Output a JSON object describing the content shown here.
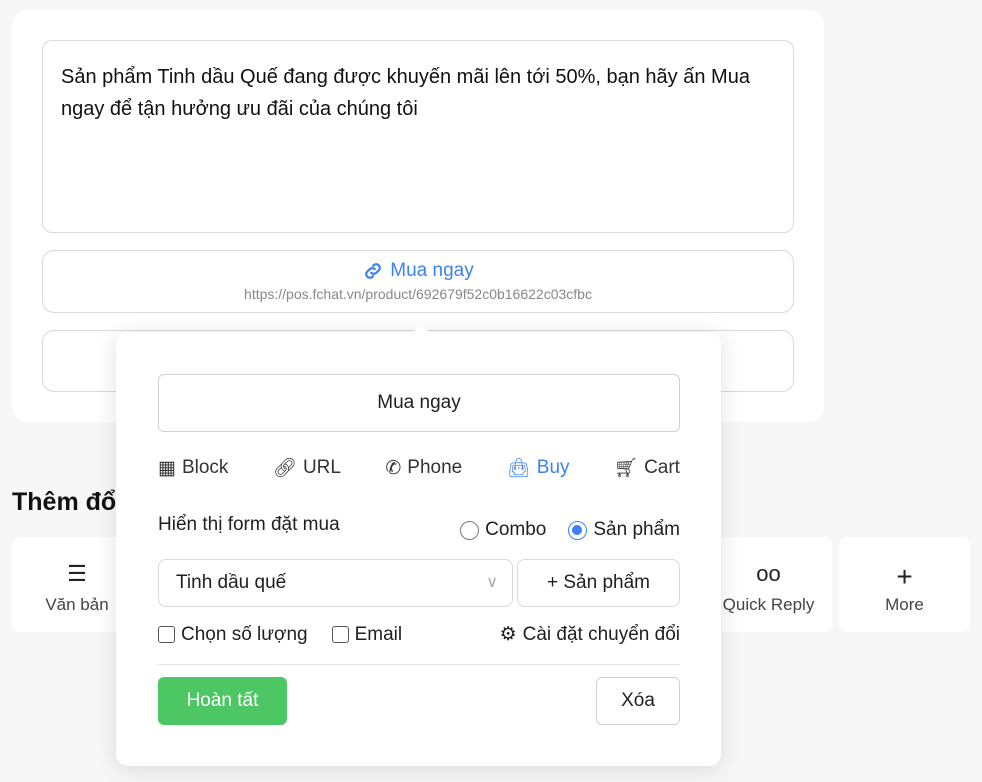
{
  "message": {
    "text": "Sản phẩm Tinh dầu Quế đang được khuyến mãi lên tới 50%, bạn hãy ấn Mua ngay để tận hưởng ưu đãi của chúng tôi"
  },
  "button": {
    "label": "Mua ngay",
    "url": "https://pos.fchat.vn/product/692679f52c0b16622c03cfbc",
    "icon": "link-icon"
  },
  "section": {
    "heading": "Thêm đổ"
  },
  "tiles": [
    {
      "label": "Văn bản",
      "icon": "list-icon"
    },
    {
      "label": "Quick Reply",
      "icon": "quick-reply-icon"
    },
    {
      "label": "More",
      "icon": "plus-icon"
    }
  ],
  "popup": {
    "name_value": "Mua ngay",
    "types": [
      {
        "label": "Block",
        "icon": "grid-icon"
      },
      {
        "label": "URL",
        "icon": "link-icon"
      },
      {
        "label": "Phone",
        "icon": "phone-icon"
      },
      {
        "label": "Buy",
        "icon": "bag-icon",
        "active": true
      },
      {
        "label": "Cart",
        "icon": "cart-icon"
      }
    ],
    "form_label": "Hiển thị form đặt mua",
    "radio_combo": "Combo",
    "radio_product": "Sản phẩm",
    "radio_selected": "Sản phẩm",
    "product_select": "Tinh dầu quế",
    "add_product": "+ Sản phẩm",
    "check_quantity": "Chọn số lượng",
    "check_email": "Email",
    "conversion_settings": "Cài đặt chuyển đổi",
    "done": "Hoàn tất",
    "delete": "Xóa",
    "accent": "#3b82f6",
    "done_color": "#4cc764"
  }
}
